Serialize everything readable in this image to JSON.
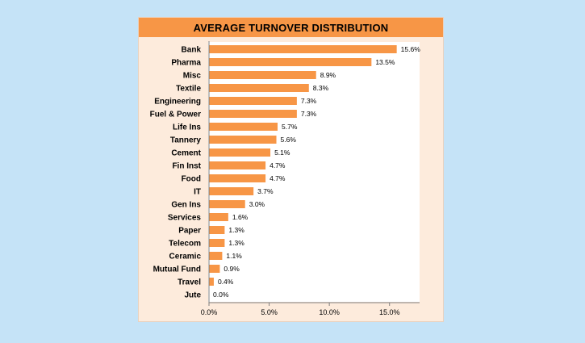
{
  "chart_data": {
    "type": "bar",
    "orientation": "horizontal",
    "title": "AVERAGE TURNOVER DISTRIBUTION",
    "categories": [
      "Bank",
      "Pharma",
      "Misc",
      "Textile",
      "Engineering",
      "Fuel & Power",
      "Life Ins",
      "Tannery",
      "Cement",
      "Fin Inst",
      "Food",
      "IT",
      "Gen Ins",
      "Services",
      "Paper",
      "Telecom",
      "Ceramic",
      "Mutual Fund",
      "Travel",
      "Jute"
    ],
    "values": [
      15.6,
      13.5,
      8.9,
      8.3,
      7.3,
      7.3,
      5.7,
      5.6,
      5.1,
      4.7,
      4.7,
      3.7,
      3.0,
      1.6,
      1.3,
      1.3,
      1.1,
      0.9,
      0.4,
      0.0
    ],
    "value_labels": [
      "15.6%",
      "13.5%",
      "8.9%",
      "8.3%",
      "7.3%",
      "7.3%",
      "5.7%",
      "5.6%",
      "5.1%",
      "4.7%",
      "4.7%",
      "3.7%",
      "3.0%",
      "1.6%",
      "1.3%",
      "1.3%",
      "1.1%",
      "0.9%",
      "0.4%",
      "0.0%"
    ],
    "xlim": [
      0,
      17.5
    ],
    "x_ticks": [
      0,
      5,
      10,
      15
    ],
    "x_tick_labels": [
      "0.0%",
      "5.0%",
      "10.0%",
      "15.0%"
    ],
    "xlabel": "",
    "ylabel": "",
    "grid": false,
    "colors": {
      "bar": "#f79646",
      "title_bar": "#f79646",
      "panel": "#fdebdc",
      "plot_bg": "#ffffff",
      "page_bg": "#c5e3f7"
    }
  }
}
